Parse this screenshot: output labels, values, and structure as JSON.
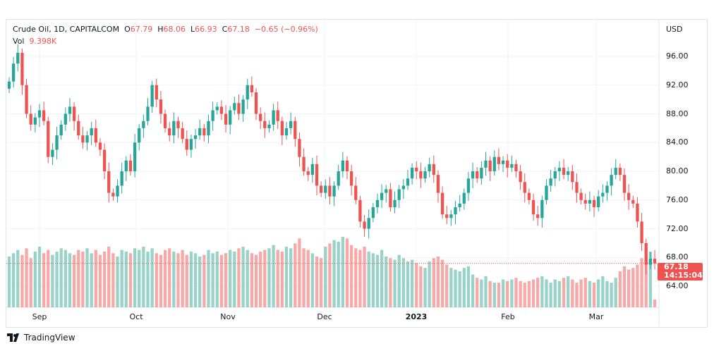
{
  "chart_data": {
    "type": "candlestick",
    "title": "Crude Oil, 1D, CAPITALCOM",
    "legend": {
      "symbol": "Crude Oil, 1D, CAPITALCOM",
      "o_label": "O",
      "o": "67.79",
      "h_label": "H",
      "h": "68.06",
      "l_label": "L",
      "l": "66.93",
      "c_label": "C",
      "c": "67.18",
      "change": "−0.65 (−0.96%)",
      "vol_label": "Vol",
      "vol": "9.398K"
    },
    "currency": "USD",
    "ylim": [
      60,
      100
    ],
    "yticks": [
      "96.00",
      "92.00",
      "88.00",
      "84.00",
      "80.00",
      "76.00",
      "72.00",
      "68.00",
      "64.00"
    ],
    "xticks": [
      "Sep",
      "Oct",
      "Nov",
      "Dec",
      "2023",
      "Feb",
      "Mar"
    ],
    "last_price": "67.18",
    "countdown": "14:15:04",
    "close": [
      92.5,
      95,
      96.5,
      92,
      88,
      86.5,
      87.5,
      88.5,
      87,
      82,
      83,
      85,
      86.5,
      88,
      89,
      87,
      85,
      84,
      85,
      86,
      84,
      83,
      80,
      77,
      76.5,
      78,
      80,
      81.5,
      80,
      84,
      86,
      87,
      89,
      92,
      90,
      88,
      86,
      85,
      87,
      86,
      84.5,
      83,
      84.5,
      85,
      86,
      85,
      87,
      88.5,
      89,
      88,
      86.5,
      88.5,
      89.5,
      88,
      90,
      92,
      91,
      88,
      87,
      86,
      86.5,
      88.5,
      87,
      85,
      86,
      87,
      84.5,
      82,
      80,
      79.5,
      81,
      78,
      77,
      78,
      76.5,
      78,
      80,
      81.5,
      80,
      78,
      76,
      73,
      72,
      73.5,
      75,
      76,
      77,
      77.5,
      75,
      76,
      77.5,
      78,
      79,
      80.5,
      80,
      79,
      80,
      81,
      79.5,
      77,
      74,
      73.5,
      74,
      75,
      75.5,
      77,
      79,
      80,
      79,
      80.5,
      81.5,
      80,
      82,
      81,
      81.5,
      80.5,
      81,
      80,
      78.5,
      77,
      76,
      74,
      73.5,
      76,
      78,
      79,
      80,
      80.5,
      79.5,
      80,
      78.5,
      77,
      76,
      75.5,
      76,
      75,
      76.5,
      77,
      78,
      79.5,
      80.5,
      79.5,
      77,
      76,
      75.5,
      73,
      70,
      67,
      67.83,
      67.18
    ],
    "volume_k": [
      62,
      66,
      70,
      64,
      72,
      60,
      68,
      74,
      66,
      70,
      64,
      68,
      72,
      70,
      66,
      64,
      70,
      68,
      72,
      66,
      70,
      64,
      68,
      74,
      66,
      62,
      70,
      68,
      66,
      72,
      70,
      74,
      68,
      72,
      66,
      64,
      70,
      72,
      68,
      66,
      70,
      64,
      68,
      66,
      62,
      64,
      70,
      66,
      68,
      64,
      66,
      70,
      68,
      72,
      74,
      70,
      66,
      64,
      68,
      70,
      72,
      76,
      70,
      68,
      74,
      72,
      78,
      84,
      72,
      70,
      66,
      62,
      60,
      74,
      78,
      82,
      80,
      86,
      84,
      76,
      72,
      70,
      74,
      68,
      66,
      64,
      70,
      62,
      60,
      58,
      64,
      60,
      56,
      58,
      54,
      50,
      48,
      56,
      60,
      62,
      58,
      52,
      48,
      46,
      44,
      48,
      50,
      40,
      36,
      34,
      38,
      32,
      30,
      30,
      34,
      32,
      34,
      36,
      32,
      30,
      32,
      34,
      36,
      38,
      34,
      30,
      34,
      32,
      36,
      38,
      34,
      30,
      34,
      36,
      32,
      30,
      34,
      38,
      32,
      30,
      36,
      44,
      50,
      46,
      48,
      52,
      60,
      62,
      68,
      9.398
    ]
  },
  "footer": {
    "brand": "TradingView"
  }
}
